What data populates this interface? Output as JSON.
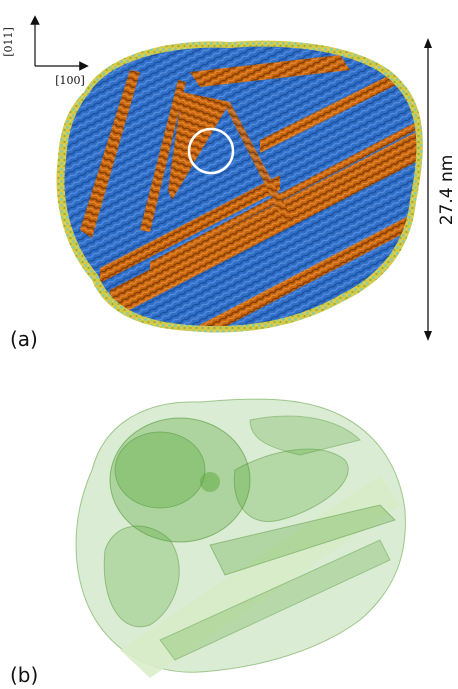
{
  "figure": {
    "panel_a_label": "(a)",
    "panel_b_label": "(b)",
    "axis_up_label": "[011]",
    "axis_right_label": "[100]",
    "scale_label": "27.4 nm"
  },
  "colors": {
    "blue_lattice": "#2f6fc8",
    "orange_band": "#c8640a",
    "yellow_surface": "#d7c948",
    "cyan_surface": "#6bd0c8",
    "green_volume": "#5aa83a",
    "green_light": "#d8ecc8",
    "circle": "#ffffff"
  }
}
